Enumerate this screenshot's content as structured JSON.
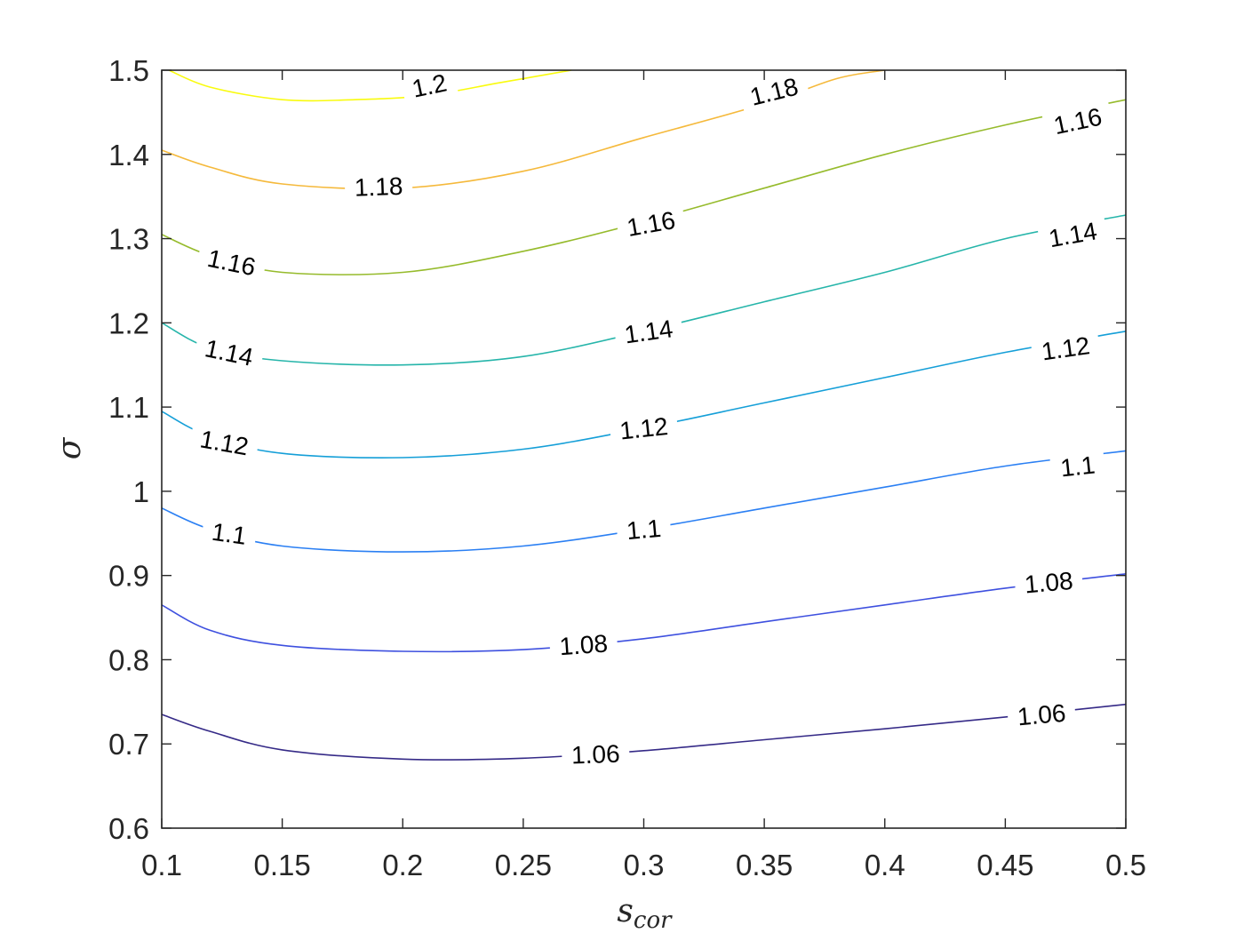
{
  "chart_data": {
    "type": "contour",
    "title": "",
    "xlabel": "s",
    "xlabel_subscript": "cor",
    "ylabel": "σ",
    "xlim": [
      0.1,
      0.5
    ],
    "ylim": [
      0.6,
      1.5
    ],
    "xticks": [
      "0.1",
      "0.15",
      "0.2",
      "0.25",
      "0.3",
      "0.35",
      "0.4",
      "0.45",
      "0.5"
    ],
    "yticks": [
      "0.6",
      "0.7",
      "0.8",
      "0.9",
      "1",
      "1.1",
      "1.2",
      "1.3",
      "1.4",
      "1.5"
    ],
    "grid": false,
    "colormap": "parula",
    "levels": [
      {
        "level": "1.06",
        "color": "#352a87",
        "points": [
          [
            0.1,
            0.735
          ],
          [
            0.12,
            0.715
          ],
          [
            0.15,
            0.693
          ],
          [
            0.2,
            0.682
          ],
          [
            0.25,
            0.683
          ],
          [
            0.3,
            0.692
          ],
          [
            0.35,
            0.705
          ],
          [
            0.4,
            0.718
          ],
          [
            0.45,
            0.732
          ],
          [
            0.5,
            0.747
          ]
        ],
        "labels": [
          [
            0.28,
            0.688,
            -2
          ],
          [
            0.465,
            0.735,
            -5
          ]
        ]
      },
      {
        "level": "1.08",
        "color": "#3e50df",
        "points": [
          [
            0.1,
            0.865
          ],
          [
            0.12,
            0.835
          ],
          [
            0.15,
            0.817
          ],
          [
            0.2,
            0.81
          ],
          [
            0.25,
            0.812
          ],
          [
            0.3,
            0.825
          ],
          [
            0.35,
            0.845
          ],
          [
            0.4,
            0.865
          ],
          [
            0.45,
            0.885
          ],
          [
            0.5,
            0.902
          ]
        ],
        "labels": [
          [
            0.275,
            0.818,
            -4
          ],
          [
            0.468,
            0.892,
            -5
          ]
        ]
      },
      {
        "level": "1.1",
        "color": "#2a7ff3",
        "points": [
          [
            0.1,
            0.98
          ],
          [
            0.12,
            0.955
          ],
          [
            0.15,
            0.935
          ],
          [
            0.2,
            0.928
          ],
          [
            0.25,
            0.935
          ],
          [
            0.3,
            0.955
          ],
          [
            0.35,
            0.98
          ],
          [
            0.4,
            1.005
          ],
          [
            0.45,
            1.03
          ],
          [
            0.5,
            1.048
          ]
        ],
        "labels": [
          [
            0.128,
            0.95,
            8
          ],
          [
            0.3,
            0.955,
            -5
          ],
          [
            0.48,
            1.03,
            -6
          ]
        ]
      },
      {
        "level": "1.12",
        "color": "#159fd8",
        "points": [
          [
            0.1,
            1.095
          ],
          [
            0.12,
            1.065
          ],
          [
            0.15,
            1.045
          ],
          [
            0.2,
            1.04
          ],
          [
            0.25,
            1.05
          ],
          [
            0.3,
            1.075
          ],
          [
            0.35,
            1.105
          ],
          [
            0.4,
            1.135
          ],
          [
            0.45,
            1.165
          ],
          [
            0.5,
            1.19
          ]
        ],
        "labels": [
          [
            0.126,
            1.058,
            10
          ],
          [
            0.3,
            1.075,
            -6
          ],
          [
            0.475,
            1.17,
            -8
          ]
        ]
      },
      {
        "level": "1.14",
        "color": "#26b5aa",
        "points": [
          [
            0.1,
            1.2
          ],
          [
            0.12,
            1.17
          ],
          [
            0.15,
            1.155
          ],
          [
            0.2,
            1.15
          ],
          [
            0.25,
            1.16
          ],
          [
            0.3,
            1.19
          ],
          [
            0.35,
            1.225
          ],
          [
            0.4,
            1.26
          ],
          [
            0.45,
            1.3
          ],
          [
            0.5,
            1.328
          ]
        ],
        "labels": [
          [
            0.128,
            1.165,
            12
          ],
          [
            0.302,
            1.19,
            -8
          ],
          [
            0.478,
            1.305,
            -10
          ]
        ]
      },
      {
        "level": "1.16",
        "color": "#96bb2c",
        "points": [
          [
            0.1,
            1.305
          ],
          [
            0.12,
            1.28
          ],
          [
            0.15,
            1.26
          ],
          [
            0.2,
            1.26
          ],
          [
            0.25,
            1.285
          ],
          [
            0.3,
            1.32
          ],
          [
            0.35,
            1.36
          ],
          [
            0.4,
            1.4
          ],
          [
            0.45,
            1.435
          ],
          [
            0.5,
            1.465
          ]
        ],
        "labels": [
          [
            0.129,
            1.272,
            12
          ],
          [
            0.303,
            1.318,
            -10
          ],
          [
            0.48,
            1.44,
            -12
          ]
        ]
      },
      {
        "level": "1.18",
        "color": "#f5b93b",
        "points": [
          [
            0.1,
            1.405
          ],
          [
            0.12,
            1.385
          ],
          [
            0.15,
            1.365
          ],
          [
            0.2,
            1.36
          ],
          [
            0.25,
            1.38
          ],
          [
            0.3,
            1.42
          ],
          [
            0.35,
            1.46
          ],
          [
            0.38,
            1.49
          ],
          [
            0.4,
            1.5
          ]
        ],
        "labels": [
          [
            0.19,
            1.362,
            -2
          ],
          [
            0.354,
            1.475,
            -14
          ]
        ]
      },
      {
        "level": "1.2",
        "color": "#f9fb0e",
        "points": [
          [
            0.103,
            1.5
          ],
          [
            0.12,
            1.48
          ],
          [
            0.15,
            1.465
          ],
          [
            0.18,
            1.465
          ],
          [
            0.21,
            1.47
          ],
          [
            0.24,
            1.485
          ],
          [
            0.27,
            1.5
          ]
        ],
        "labels": [
          [
            0.211,
            1.482,
            -12
          ]
        ]
      }
    ]
  }
}
